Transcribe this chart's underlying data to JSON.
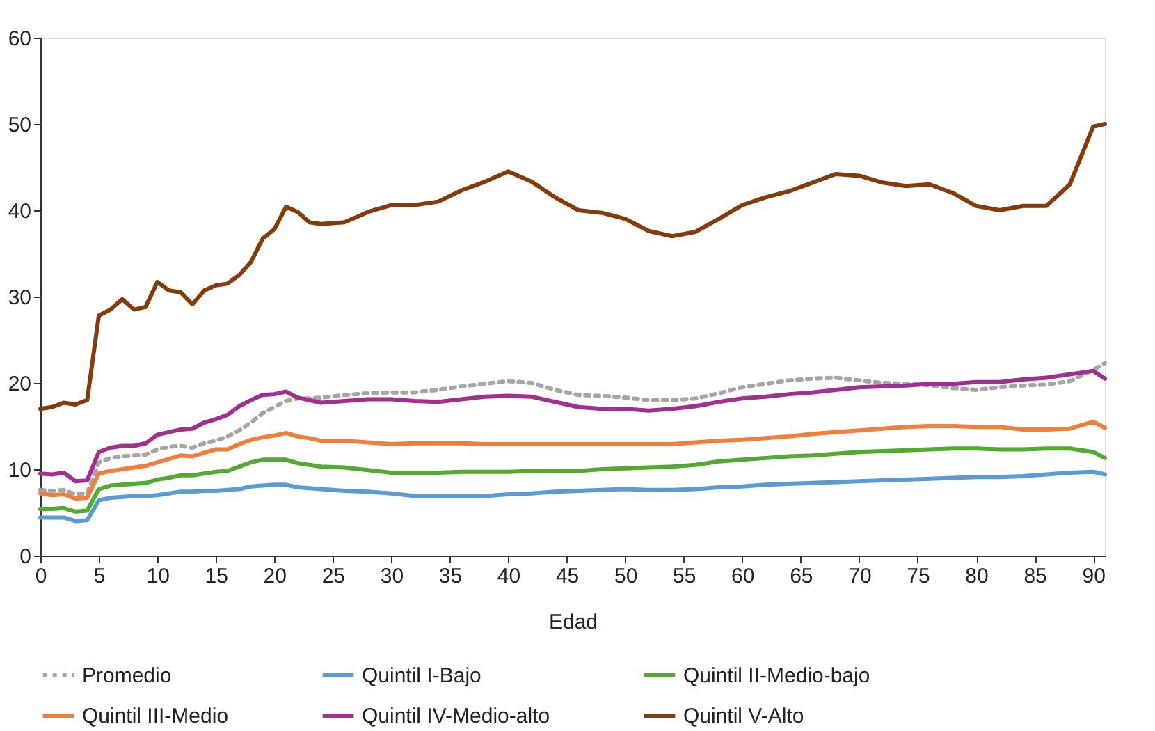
{
  "chart_data": {
    "type": "line",
    "xlabel": "Edad",
    "xlim": [
      0,
      91
    ],
    "xticks": [
      0,
      5,
      10,
      15,
      20,
      25,
      30,
      35,
      40,
      45,
      50,
      55,
      60,
      65,
      70,
      75,
      80,
      85,
      90
    ],
    "ylim": [
      0,
      60
    ],
    "yticks": [
      0,
      10,
      20,
      30,
      40,
      50,
      60
    ],
    "grid": false,
    "legend": "bottom",
    "marker": "none",
    "x": [
      0,
      1,
      2,
      3,
      4,
      5,
      6,
      7,
      8,
      9,
      10,
      11,
      12,
      13,
      14,
      15,
      16,
      17,
      18,
      19,
      20,
      21,
      22,
      23,
      24,
      26,
      28,
      30,
      32,
      34,
      36,
      38,
      40,
      42,
      44,
      46,
      48,
      50,
      52,
      54,
      56,
      58,
      60,
      62,
      64,
      66,
      68,
      70,
      72,
      74,
      76,
      78,
      80,
      82,
      84,
      86,
      88,
      90,
      91
    ],
    "series": [
      {
        "name": "Promedio",
        "color": "#a6a6a6",
        "line_style": "dotted",
        "values": [
          7.6,
          7.5,
          7.6,
          7.1,
          7.2,
          10.8,
          11.3,
          11.5,
          11.6,
          11.7,
          12.3,
          12.6,
          12.7,
          12.5,
          13,
          13.3,
          13.8,
          14.5,
          15.4,
          16.5,
          17.2,
          17.9,
          18.2,
          18.2,
          18.3,
          18.6,
          18.8,
          18.9,
          18.9,
          19.2,
          19.6,
          19.9,
          20.2,
          20,
          19.2,
          18.6,
          18.5,
          18.3,
          18,
          18,
          18.2,
          18.8,
          19.5,
          19.9,
          20.3,
          20.5,
          20.6,
          20.3,
          20,
          19.9,
          19.7,
          19.4,
          19.2,
          19.5,
          19.7,
          19.8,
          20.2,
          21.5,
          22.3
        ]
      },
      {
        "name": "Quintil I-Bajo",
        "color": "#5b9bd5",
        "line_style": "solid",
        "values": [
          4.4,
          4.4,
          4.4,
          4,
          4.1,
          6.4,
          6.7,
          6.8,
          6.9,
          6.9,
          7,
          7.2,
          7.4,
          7.4,
          7.5,
          7.5,
          7.6,
          7.7,
          8,
          8.1,
          8.2,
          8.2,
          7.9,
          7.8,
          7.7,
          7.5,
          7.4,
          7.2,
          6.9,
          6.9,
          6.9,
          6.9,
          7.1,
          7.2,
          7.4,
          7.5,
          7.6,
          7.7,
          7.6,
          7.6,
          7.7,
          7.9,
          8,
          8.2,
          8.3,
          8.4,
          8.5,
          8.6,
          8.7,
          8.8,
          8.9,
          9,
          9.1,
          9.1,
          9.2,
          9.4,
          9.6,
          9.7,
          9.4
        ]
      },
      {
        "name": "Quintil II-Medio-bajo",
        "color": "#55a832",
        "line_style": "solid",
        "values": [
          5.4,
          5.4,
          5.5,
          5.1,
          5.2,
          7.7,
          8.1,
          8.2,
          8.3,
          8.4,
          8.8,
          9,
          9.3,
          9.3,
          9.5,
          9.7,
          9.8,
          10.3,
          10.8,
          11.1,
          11.1,
          11.1,
          10.7,
          10.5,
          10.3,
          10.2,
          9.9,
          9.6,
          9.6,
          9.6,
          9.7,
          9.7,
          9.7,
          9.8,
          9.8,
          9.8,
          10,
          10.1,
          10.2,
          10.3,
          10.5,
          10.9,
          11.1,
          11.3,
          11.5,
          11.6,
          11.8,
          12,
          12.1,
          12.2,
          12.3,
          12.4,
          12.4,
          12.3,
          12.3,
          12.4,
          12.4,
          12,
          11.3
        ]
      },
      {
        "name": "Quintil III-Medio",
        "color": "#f07f3c",
        "line_style": "solid",
        "values": [
          7.2,
          7,
          7.1,
          6.6,
          6.7,
          9.5,
          9.8,
          10,
          10.2,
          10.4,
          10.8,
          11.2,
          11.6,
          11.5,
          11.9,
          12.3,
          12.3,
          12.9,
          13.4,
          13.7,
          13.9,
          14.2,
          13.8,
          13.6,
          13.3,
          13.3,
          13.1,
          12.9,
          13,
          13,
          13,
          12.9,
          12.9,
          12.9,
          12.9,
          12.9,
          12.9,
          12.9,
          12.9,
          12.9,
          13.1,
          13.3,
          13.4,
          13.6,
          13.8,
          14.1,
          14.3,
          14.5,
          14.7,
          14.9,
          15,
          15,
          14.9,
          14.9,
          14.6,
          14.6,
          14.7,
          15.5,
          14.8
        ]
      },
      {
        "name": "Quintil IV-Medio-alto",
        "color": "#a03090",
        "line_style": "solid",
        "values": [
          9.5,
          9.4,
          9.6,
          8.6,
          8.7,
          12,
          12.5,
          12.7,
          12.7,
          13,
          14,
          14.3,
          14.6,
          14.7,
          15.4,
          15.8,
          16.3,
          17.3,
          18,
          18.6,
          18.7,
          19,
          18.3,
          18,
          17.7,
          17.9,
          18.1,
          18.1,
          17.9,
          17.8,
          18.1,
          18.4,
          18.5,
          18.4,
          17.8,
          17.2,
          17,
          17,
          16.8,
          17,
          17.3,
          17.8,
          18.2,
          18.4,
          18.7,
          18.9,
          19.2,
          19.5,
          19.6,
          19.7,
          19.9,
          19.9,
          20.1,
          20.1,
          20.4,
          20.6,
          21,
          21.4,
          20.5
        ]
      },
      {
        "name": "Quintil V-Alto",
        "color": "#843c0c",
        "line_style": "solid",
        "values": [
          17,
          17.2,
          17.7,
          17.5,
          18,
          27.8,
          28.5,
          29.7,
          28.5,
          28.8,
          31.7,
          30.7,
          30.5,
          29.1,
          30.7,
          31.3,
          31.5,
          32.5,
          34,
          36.7,
          37.8,
          40.4,
          39.8,
          38.6,
          38.4,
          38.6,
          39.8,
          40.6,
          40.6,
          41,
          42.3,
          43.3,
          44.5,
          43.3,
          41.5,
          40,
          39.7,
          39,
          37.6,
          37,
          37.5,
          39,
          40.6,
          41.5,
          42.2,
          43.2,
          44.2,
          44,
          43.2,
          42.8,
          43,
          42,
          40.5,
          40,
          40.5,
          40.5,
          43,
          49.7,
          50
        ]
      }
    ]
  }
}
